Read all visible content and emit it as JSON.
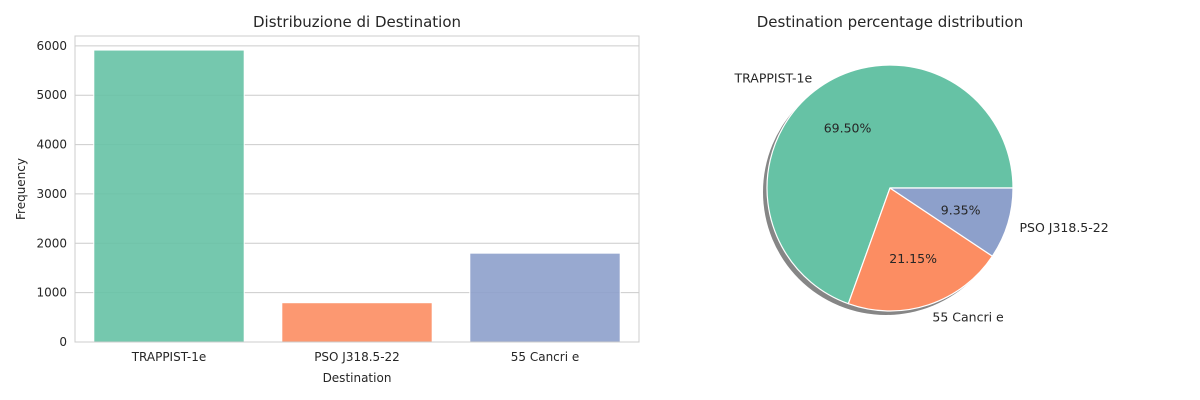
{
  "colors": {
    "trappist": "#66c2a5",
    "pso": "#fc8d62",
    "cancri": "#8da0cb",
    "grid": "#cccccc",
    "shadow": "#808080"
  },
  "chart_data": [
    {
      "type": "bar",
      "title": "Distribuzione di Destination",
      "xlabel": "Destination",
      "ylabel": "Frequency",
      "categories": [
        "TRAPPIST-1e",
        "PSO J318.5-22",
        "55 Cancri e"
      ],
      "values": [
        5915,
        796,
        1800
      ],
      "ylim": [
        0,
        6200
      ],
      "yticks": [
        "0",
        "1000",
        "2000",
        "3000",
        "4000",
        "5000",
        "6000"
      ],
      "grid": true
    },
    {
      "type": "pie",
      "title": "Destination percentage distribution",
      "labels": [
        "TRAPPIST-1e",
        "55 Cancri e",
        "PSO J318.5-22"
      ],
      "values": [
        69.5,
        21.15,
        9.35
      ],
      "autopct": [
        "69.50%",
        "21.15%",
        "9.35%"
      ],
      "shadow": true
    }
  ]
}
